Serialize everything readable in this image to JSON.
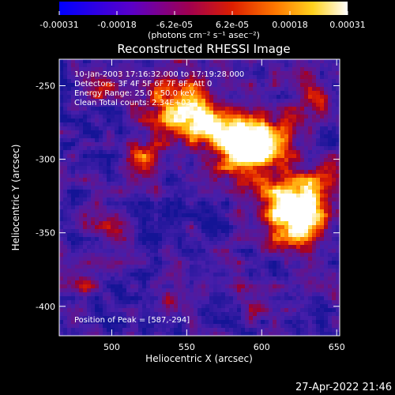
{
  "chart_data": {
    "type": "heatmap",
    "title": "Reconstructed RHESSI Image",
    "xlabel": "Heliocentric X (arcsec)",
    "ylabel": "Heliocentric Y (arcsec)",
    "xlim": [
      465,
      652
    ],
    "ylim": [
      -420,
      -232
    ],
    "x_ticks": [
      500,
      550,
      600,
      650
    ],
    "y_ticks": [
      -250,
      -300,
      -350,
      -400
    ],
    "colorbar": {
      "ticks": [
        "-0.00031",
        "-0.00018",
        "-6.2e-05",
        "6.2e-05",
        "0.00018",
        "0.00031"
      ],
      "unit_label": "(photons cm⁻² s⁻¹ asec⁻²)",
      "range": [
        -0.00031,
        0.00031
      ]
    },
    "info_lines": [
      "10-Jan-2003 17:16:32.000 to 17:19:28.000",
      "Detectors: 3F 4F 5F 6F 7F 8F, Att 0",
      "Energy Range: 25.0 - 50.0 keV",
      "Clean    Total counts: 2.34E+03"
    ],
    "peak_label": "Position of Peak = [587,-294]",
    "timestamp": "27-Apr-2022 21:46",
    "sources": [
      {
        "x": 540,
        "y": -262,
        "amp": 0.85,
        "sigma": 14
      },
      {
        "x": 565,
        "y": -275,
        "amp": 0.9,
        "sigma": 13
      },
      {
        "x": 587,
        "y": -294,
        "amp": 1.0,
        "sigma": 12
      },
      {
        "x": 600,
        "y": -285,
        "amp": 0.8,
        "sigma": 14
      },
      {
        "x": 615,
        "y": -330,
        "amp": 1.0,
        "sigma": 14
      },
      {
        "x": 625,
        "y": -345,
        "amp": 0.85,
        "sigma": 11
      },
      {
        "x": 640,
        "y": -320,
        "amp": 0.7,
        "sigma": 12
      },
      {
        "x": 520,
        "y": -300,
        "amp": 0.6,
        "sigma": 10
      },
      {
        "x": 500,
        "y": -345,
        "amp": 0.45,
        "sigma": 9
      },
      {
        "x": 490,
        "y": -250,
        "amp": 0.45,
        "sigma": 9
      },
      {
        "x": 600,
        "y": -395,
        "amp": 0.35,
        "sigma": 10
      },
      {
        "x": 545,
        "y": -395,
        "amp": 0.35,
        "sigma": 9
      },
      {
        "x": 480,
        "y": -385,
        "amp": 0.4,
        "sigma": 8
      },
      {
        "x": 635,
        "y": -255,
        "amp": 0.5,
        "sigma": 10
      }
    ]
  }
}
